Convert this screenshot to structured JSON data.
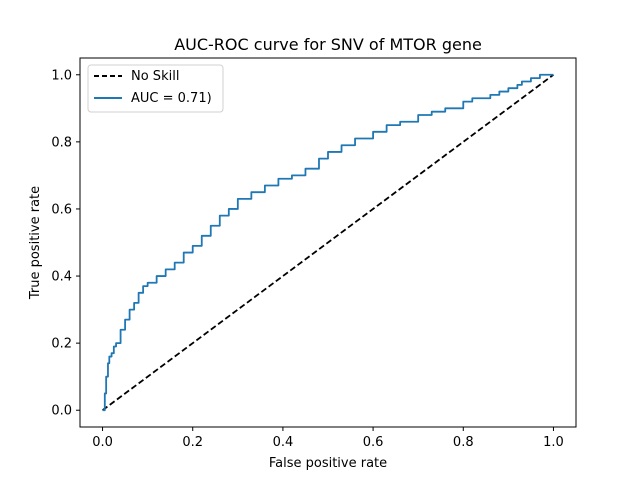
{
  "chart_data": {
    "type": "line",
    "title": "AUC-ROC curve for SNV of MTOR gene",
    "xlabel": "False positive rate",
    "ylabel": "True positive rate",
    "xlim": [
      -0.05,
      1.05
    ],
    "ylim": [
      -0.05,
      1.05
    ],
    "xticks": [
      0.0,
      0.2,
      0.4,
      0.6,
      0.8,
      1.0
    ],
    "yticks": [
      0.0,
      0.2,
      0.4,
      0.6,
      0.8,
      1.0
    ],
    "tick_labels_x": [
      "0.0",
      "0.2",
      "0.4",
      "0.6",
      "0.8",
      "1.0"
    ],
    "tick_labels_y": [
      "0.0",
      "0.2",
      "0.4",
      "0.6",
      "0.8",
      "1.0"
    ],
    "grid": false,
    "legend_position": "upper-left",
    "series": [
      {
        "name": "No Skill",
        "color": "#000000",
        "style": "dashed",
        "x": [
          0.0,
          1.0
        ],
        "y": [
          0.0,
          1.0
        ]
      },
      {
        "name": "AUC = 0.71)",
        "color": "#1f77b4",
        "style": "solid",
        "x": [
          0.0,
          0.005,
          0.008,
          0.012,
          0.015,
          0.02,
          0.025,
          0.03,
          0.04,
          0.05,
          0.06,
          0.07,
          0.08,
          0.09,
          0.1,
          0.12,
          0.14,
          0.16,
          0.18,
          0.2,
          0.22,
          0.24,
          0.26,
          0.28,
          0.3,
          0.33,
          0.36,
          0.39,
          0.42,
          0.45,
          0.48,
          0.5,
          0.53,
          0.56,
          0.6,
          0.63,
          0.66,
          0.7,
          0.73,
          0.76,
          0.8,
          0.82,
          0.84,
          0.86,
          0.88,
          0.9,
          0.92,
          0.93,
          0.95,
          0.97,
          1.0
        ],
        "y": [
          0.0,
          0.05,
          0.1,
          0.14,
          0.16,
          0.17,
          0.19,
          0.2,
          0.24,
          0.27,
          0.3,
          0.32,
          0.35,
          0.37,
          0.38,
          0.4,
          0.42,
          0.44,
          0.47,
          0.49,
          0.52,
          0.55,
          0.58,
          0.6,
          0.63,
          0.65,
          0.67,
          0.69,
          0.7,
          0.72,
          0.75,
          0.77,
          0.79,
          0.81,
          0.83,
          0.85,
          0.86,
          0.88,
          0.89,
          0.9,
          0.92,
          0.93,
          0.93,
          0.94,
          0.95,
          0.96,
          0.97,
          0.98,
          0.99,
          1.0,
          1.0
        ]
      }
    ]
  }
}
